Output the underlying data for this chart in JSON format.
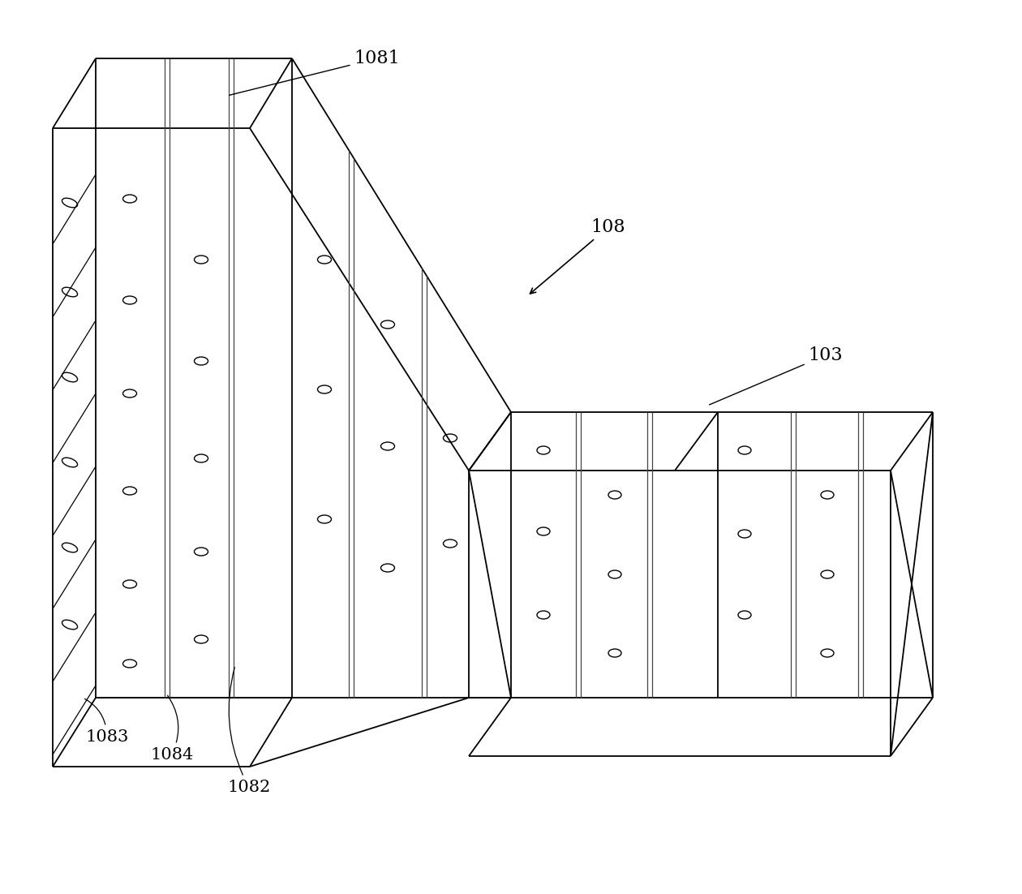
{
  "bg_color": "#ffffff",
  "line_color": "#000000",
  "line_width": 1.3,
  "fig_width": 12.4,
  "fig_height": 10.82,
  "dpi": 100
}
